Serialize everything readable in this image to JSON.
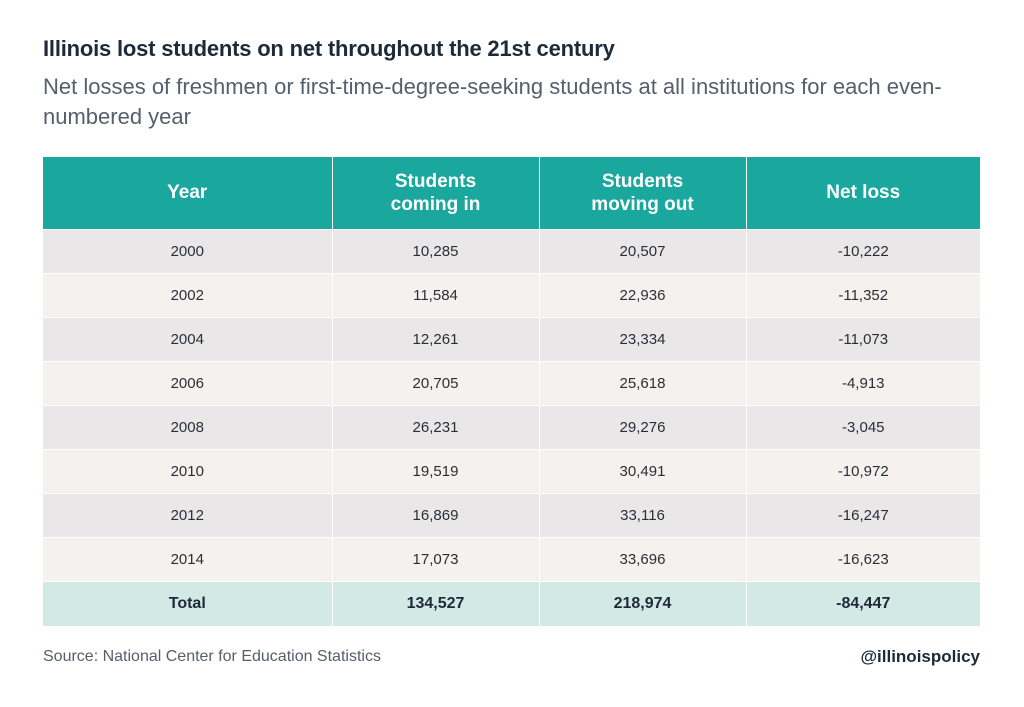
{
  "chart_data": {
    "type": "table",
    "title": "Illinois lost students on net throughout the 21st century",
    "subtitle": "Net losses of freshmen or first-time-degree-seeking students at all institutions for each even-numbered year",
    "columns": [
      "Year",
      "Students coming in",
      "Students moving out",
      "Net loss"
    ],
    "rows": [
      [
        "2000",
        "10,285",
        "20,507",
        "-10,222"
      ],
      [
        "2002",
        "11,584",
        "22,936",
        "-11,352"
      ],
      [
        "2004",
        "12,261",
        "23,334",
        "-11,073"
      ],
      [
        "2006",
        "20,705",
        "25,618",
        "-4,913"
      ],
      [
        "2008",
        "26,231",
        "29,276",
        "-3,045"
      ],
      [
        "2010",
        "19,519",
        "30,491",
        "-10,972"
      ],
      [
        "2012",
        "16,869",
        "33,116",
        "-16,247"
      ],
      [
        "2014",
        "17,073",
        "33,696",
        "-16,623"
      ]
    ],
    "total": [
      "Total",
      "134,527",
      "218,974",
      "-84,447"
    ]
  },
  "footer": {
    "source": "Source: National Center for Education Statistics",
    "handle": "@illinoispolicy"
  },
  "colors": {
    "header_bg": "#1aa89e",
    "row_odd_bg": "#e9e7e8",
    "row_even_bg": "#f5f1ee",
    "total_bg": "#d3e9e6"
  }
}
